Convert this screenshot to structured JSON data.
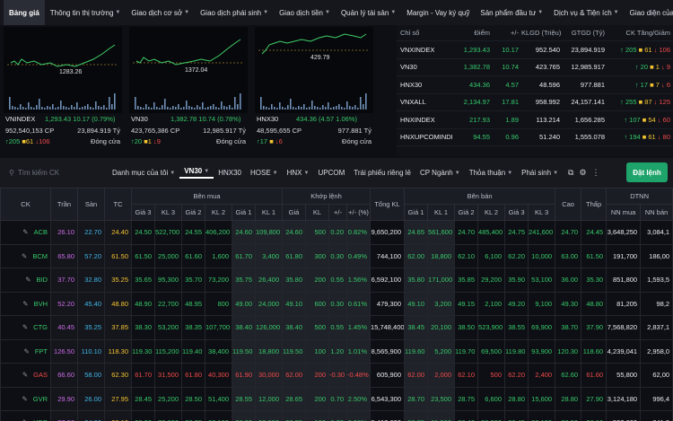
{
  "nav": {
    "items": [
      {
        "label": "Bảng giá",
        "active": true,
        "dropdown": false
      },
      {
        "label": "Thông tin thị trường",
        "dropdown": true
      },
      {
        "label": "Giao dịch cơ sở",
        "dropdown": true
      },
      {
        "label": "Giao dịch phái sinh",
        "dropdown": true
      },
      {
        "label": "Giao dịch tiền",
        "dropdown": true
      },
      {
        "label": "Quản lý tài sản",
        "dropdown": true
      },
      {
        "label": "Margin - Vay ký quỹ",
        "dropdown": false
      },
      {
        "label": "Sản phẩm đầu tư",
        "dropdown": true
      },
      {
        "label": "Dịch vụ & Tiện ích",
        "dropdown": true
      },
      {
        "label": "Giao diện của tôi",
        "dropdown": false
      }
    ]
  },
  "index_cards": [
    {
      "name": "VNINDEX",
      "value": "1,293.43 10.17 (0.79%)",
      "chart_label": "1283.26",
      "volume": "952,540,153 CP",
      "amount": "23,894.919 Tỷ",
      "up": "205",
      "ref": "61",
      "down": "106",
      "status": "Đóng cửa"
    },
    {
      "name": "VN30",
      "value": "1,382.78 10.74 (0.78%)",
      "chart_label": "1372.04",
      "volume": "423,765,386 CP",
      "amount": "12,985.917 Tỷ",
      "up": "20",
      "ref": "1",
      "down": "9",
      "status": "Đóng cửa"
    },
    {
      "name": "HNX30",
      "value": "434.36 (4.57 1.06%)",
      "chart_label": "429.79",
      "volume": "48,595,655 CP",
      "amount": "977.881 Tỷ",
      "up": "17",
      "ref": "",
      "down": "6",
      "status": "Đóng cửa"
    }
  ],
  "index_table": {
    "headers": [
      "Chỉ số",
      "Điểm",
      "+/-",
      "KLGD (Triệu)",
      "GTGD (Tỷ)",
      "CK Tăng/Giảm"
    ],
    "rows": [
      {
        "name": "VNXINDEX",
        "point": "1,293.43",
        "change": "10.17",
        "kl": "952.540",
        "gt": "23,894.919",
        "up": "205",
        "ref": "61",
        "down": "106"
      },
      {
        "name": "VN30",
        "point": "1,382.78",
        "change": "10.74",
        "kl": "423.765",
        "gt": "12,985.917",
        "up": "20",
        "ref": "1",
        "down": "9"
      },
      {
        "name": "HNX30",
        "point": "434.36",
        "change": "4.57",
        "kl": "48.596",
        "gt": "977.881",
        "up": "17",
        "ref": "7",
        "down": "6"
      },
      {
        "name": "VNXALL",
        "point": "2,134.97",
        "change": "17.81",
        "kl": "958.992",
        "gt": "24,157.141",
        "up": "255",
        "ref": "87",
        "down": "125"
      },
      {
        "name": "HNXINDEX",
        "point": "217.93",
        "change": "1.89",
        "kl": "113.214",
        "gt": "1,656.285",
        "up": "107",
        "ref": "54",
        "down": "60"
      },
      {
        "name": "HNXUPCOMINDI",
        "point": "94.55",
        "change": "0.96",
        "kl": "51.240",
        "gt": "1,555.078",
        "up": "194",
        "ref": "61",
        "down": "80"
      }
    ]
  },
  "filterbar": {
    "search_placeholder": "Tìm kiếm CK",
    "items": [
      {
        "label": "Danh mục của tôi",
        "dropdown": true
      },
      {
        "label": "VN30",
        "active": true,
        "dropdown": true
      },
      {
        "label": "HNX30",
        "dropdown": false
      },
      {
        "label": "HOSE",
        "dropdown": true
      },
      {
        "label": "HNX",
        "dropdown": true
      },
      {
        "label": "UPCOM",
        "dropdown": false
      },
      {
        "label": "Trái phiếu riêng lẻ",
        "dropdown": false
      },
      {
        "label": "CP Ngành",
        "dropdown": true
      },
      {
        "label": "Thỏa thuận",
        "dropdown": true
      },
      {
        "label": "Phái sinh",
        "dropdown": true
      }
    ],
    "order_button": "Đặt lệnh"
  },
  "board": {
    "group_headers": {
      "buy": "Bên mua",
      "match": "Khớp lệnh",
      "sell": "Bên bán",
      "foreign": "DTNN"
    },
    "headers": {
      "ck": "CK",
      "ceil": "Trần",
      "floor": "Sàn",
      "ref": "TC",
      "b3": "Giá 3",
      "kl3": "KL 3",
      "b2": "Giá 2",
      "kl2": "KL 2",
      "b1": "Giá 1",
      "kl1": "KL 1",
      "mp": "Giá",
      "mkl": "KL",
      "chg": "+/-",
      "pct": "+/- (%)",
      "total": "Tổng KL",
      "s1": "Giá 1",
      "skl1": "KL 1",
      "s2": "Giá 2",
      "skl2": "KL 2",
      "s3": "Giá 3",
      "skl3": "KL 3",
      "high": "Cao",
      "low": "Thấp",
      "nnbuy": "NN mua",
      "nnsell": "NN bán"
    },
    "rows": [
      {
        "ck": "ACB",
        "c": "up",
        "ceil": "26.10",
        "floor": "22.70",
        "ref": "24.40",
        "b3": "24.50",
        "kl3": "522,700",
        "b2": "24.55",
        "kl2": "406,200",
        "b1": "24.60",
        "kl1": "109,800",
        "mp": "24.60",
        "mkl": "500",
        "chg": "0.20",
        "pct": "0.82%",
        "total": "9,650,200",
        "s1": "24.65",
        "skl1": "561,600",
        "s2": "24.70",
        "skl2": "485,400",
        "s3": "24.75",
        "skl3": "241,600",
        "high": "24.70",
        "low": "24.45",
        "nnbuy": "3,648,250",
        "nnsell": "3,084,1"
      },
      {
        "ck": "BCM",
        "c": "up",
        "ceil": "65.80",
        "floor": "57.20",
        "ref": "61.50",
        "b3": "61.50",
        "kl3": "25,000",
        "b2": "61.60",
        "kl2": "1,600",
        "b1": "61.70",
        "kl1": "3,400",
        "mp": "61.80",
        "mkl": "300",
        "chg": "0.30",
        "pct": "0.49%",
        "total": "744,100",
        "s1": "62.00",
        "skl1": "18,800",
        "s2": "62.10",
        "skl2": "6,100",
        "s3": "62.20",
        "skl3": "10,000",
        "high": "63.00",
        "low": "61.50",
        "nnbuy": "191,700",
        "nnsell": "186,00"
      },
      {
        "ck": "BID",
        "c": "up",
        "ceil": "37.70",
        "floor": "32.80",
        "ref": "35.25",
        "b3": "35.65",
        "kl3": "95,300",
        "b2": "35.70",
        "kl2": "73,200",
        "b1": "35.75",
        "kl1": "26,400",
        "mp": "35.80",
        "mkl": "200",
        "chg": "0.55",
        "pct": "1.56%",
        "total": "6,592,100",
        "s1": "35.80",
        "skl1": "171,000",
        "s2": "35.85",
        "skl2": "29,200",
        "s3": "35.90",
        "skl3": "53,100",
        "high": "36.00",
        "low": "35.30",
        "nnbuy": "851,800",
        "nnsell": "1,593,5"
      },
      {
        "ck": "BVH",
        "c": "up",
        "ceil": "52.20",
        "floor": "45.40",
        "ref": "48.80",
        "b3": "48.90",
        "kl3": "22,700",
        "b2": "48.95",
        "kl2": "800",
        "b1": "49.00",
        "kl1": "24,000",
        "mp": "49.10",
        "mkl": "600",
        "chg": "0.30",
        "pct": "0.61%",
        "total": "479,300",
        "s1": "49.10",
        "skl1": "3,200",
        "s2": "49.15",
        "skl2": "2,100",
        "s3": "49.20",
        "skl3": "9,100",
        "high": "49.30",
        "low": "48.80",
        "nnbuy": "81,205",
        "nnsell": "98,2"
      },
      {
        "ck": "CTG",
        "c": "up",
        "ceil": "40.45",
        "floor": "35.25",
        "ref": "37.85",
        "b3": "38.30",
        "kl3": "53,200",
        "b2": "38.35",
        "kl2": "107,700",
        "b1": "38.40",
        "kl1": "126,000",
        "mp": "38.40",
        "mkl": "500",
        "chg": "0.55",
        "pct": "1.45%",
        "total": "15,748,400",
        "s1": "38.45",
        "skl1": "20,100",
        "s2": "38.50",
        "skl2": "523,900",
        "s3": "38.55",
        "skl3": "69,900",
        "high": "38.70",
        "low": "37.90",
        "nnbuy": "7,568,820",
        "nnsell": "2,837,1"
      },
      {
        "ck": "FPT",
        "c": "up",
        "ceil": "126.50",
        "floor": "110.10",
        "ref": "118.30",
        "b3": "119.30",
        "kl3": "115,200",
        "b2": "119.40",
        "kl2": "38,400",
        "b1": "119.50",
        "kl1": "18,800",
        "mp": "119.50",
        "mkl": "100",
        "chg": "1.20",
        "pct": "1.01%",
        "total": "8,565,900",
        "s1": "119.60",
        "skl1": "5,200",
        "s2": "119.70",
        "skl2": "69,500",
        "s3": "119.80",
        "skl3": "93,900",
        "high": "120.30",
        "low": "118.60",
        "nnbuy": "4,239,041",
        "nnsell": "2,958,0"
      },
      {
        "ck": "GAS",
        "c": "down",
        "ceil": "66.60",
        "floor": "58.00",
        "ref": "62.30",
        "b3": "61.70",
        "kl3": "31,500",
        "b2": "61.80",
        "kl2": "40,300",
        "b1": "61.90",
        "kl1": "30,000",
        "mp": "62.00",
        "mkl": "200",
        "chg": "-0.30",
        "pct": "-0.48%",
        "total": "605,900",
        "s1": "62.00",
        "skl1": "2,000",
        "s2": "62.10",
        "skl2": "500",
        "s3": "62.20",
        "skl3": "2,400",
        "high": "62.60",
        "low": "61.60",
        "nnbuy": "55,800",
        "nnsell": "62,00"
      },
      {
        "ck": "GVR",
        "c": "up",
        "ceil": "29.90",
        "floor": "26.00",
        "ref": "27.95",
        "b3": "28.45",
        "kl3": "25,200",
        "b2": "28.50",
        "kl2": "51,400",
        "b1": "28.55",
        "kl1": "12,000",
        "mp": "28.65",
        "mkl": "200",
        "chg": "0.70",
        "pct": "2.50%",
        "total": "6,543,300",
        "s1": "28.70",
        "skl1": "23,500",
        "s2": "28.75",
        "skl2": "6,600",
        "s3": "28.80",
        "skl3": "15,600",
        "high": "28.80",
        "low": "27.90",
        "nnbuy": "3,124,180",
        "nnsell": "996,4"
      },
      {
        "ck": "HDB",
        "c": "up",
        "ceil": "27.90",
        "floor": "24.30",
        "ref": "26.10",
        "b3": "26.20",
        "kl3": "76,600",
        "b2": "26.25",
        "kl2": "88,100",
        "b1": "26.30",
        "kl1": "92,900",
        "mp": "26.35",
        "mkl": "100",
        "chg": "0.25",
        "pct": "0.96%",
        "total": "5,412,600",
        "s1": "26.35",
        "skl1": "61,500",
        "s2": "26.40",
        "skl2": "36,900",
        "s3": "26.45",
        "skl3": "80,100",
        "high": "26.50",
        "low": "26.10",
        "nnbuy": "502,600",
        "nnsell": "841,3"
      }
    ]
  }
}
